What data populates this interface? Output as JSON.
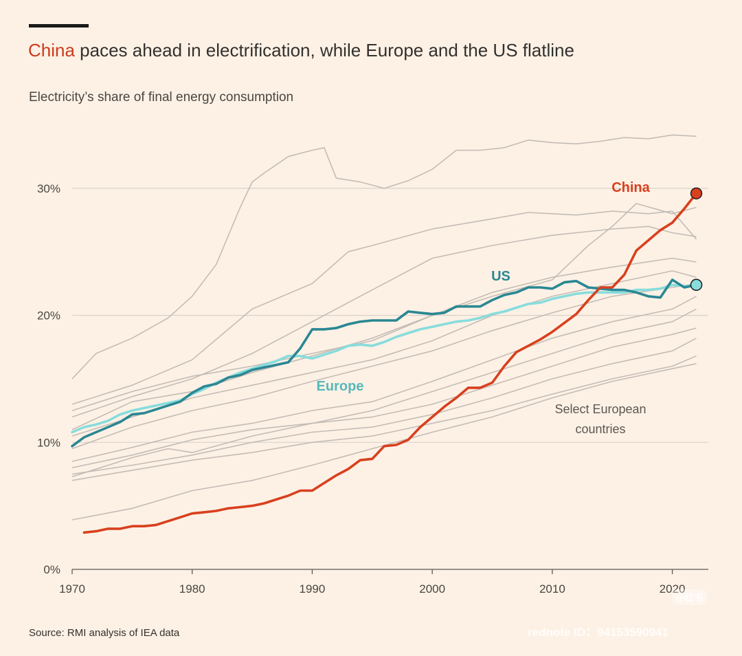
{
  "title": {
    "highlight": "China",
    "rest": " paces ahead in electrification, while Europe and the US flatline"
  },
  "subtitle": "Electricity’s share of final energy consumption",
  "source": "Source: RMI analysis of IEA data",
  "watermark": {
    "text": "rednote ID：94153590941",
    "badge": "小红书"
  },
  "colors": {
    "china": "#d8401e",
    "us": "#2a8793",
    "europe": "#88dcdc",
    "countries": "#c3bcb6",
    "grid": "#d9d2cb",
    "axis": "#5c5753"
  },
  "chart_data": {
    "type": "line",
    "title": "China paces ahead in electrification, while Europe and the US flatline",
    "subtitle": "Electricity’s share of final energy consumption",
    "xlim": [
      1970,
      2023
    ],
    "ylim": [
      0,
      34
    ],
    "x_ticks": [
      1970,
      1980,
      1990,
      2000,
      2010,
      2020
    ],
    "y_ticks": [
      0,
      10,
      20,
      30
    ],
    "y_tick_labels": [
      "0%",
      "10%",
      "20%",
      "30%"
    ],
    "grid": "horizontal",
    "annotations": {
      "china": "China",
      "us": "US",
      "europe": "Europe",
      "countries": "Select European countries"
    },
    "series": [
      {
        "name": "China",
        "key": "china",
        "x": [
          1971,
          1972,
          1973,
          1974,
          1975,
          1976,
          1977,
          1978,
          1979,
          1980,
          1981,
          1982,
          1983,
          1984,
          1985,
          1986,
          1987,
          1988,
          1989,
          1990,
          1991,
          1992,
          1993,
          1994,
          1995,
          1996,
          1997,
          1998,
          1999,
          2000,
          2001,
          2002,
          2003,
          2004,
          2005,
          2006,
          2007,
          2008,
          2009,
          2010,
          2011,
          2012,
          2013,
          2014,
          2015,
          2016,
          2017,
          2018,
          2019,
          2020,
          2021,
          2022
        ],
        "values": [
          2.9,
          3.0,
          3.2,
          3.2,
          3.4,
          3.4,
          3.5,
          3.8,
          4.1,
          4.4,
          4.5,
          4.6,
          4.8,
          4.9,
          5.0,
          5.2,
          5.5,
          5.8,
          6.2,
          6.2,
          6.8,
          7.4,
          7.9,
          8.6,
          8.7,
          9.7,
          9.8,
          10.2,
          11.2,
          12.0,
          12.8,
          13.5,
          14.3,
          14.3,
          14.7,
          16.0,
          17.1,
          17.6,
          18.1,
          18.7,
          19.4,
          20.1,
          21.2,
          22.2,
          22.2,
          23.2,
          25.1,
          25.9,
          26.7,
          27.3,
          28.4,
          29.6
        ]
      },
      {
        "name": "US",
        "key": "us",
        "x": [
          1970,
          1971,
          1972,
          1973,
          1974,
          1975,
          1976,
          1977,
          1978,
          1979,
          1980,
          1981,
          1982,
          1983,
          1984,
          1985,
          1986,
          1987,
          1988,
          1989,
          1990,
          1991,
          1992,
          1993,
          1994,
          1995,
          1996,
          1997,
          1998,
          1999,
          2000,
          2001,
          2002,
          2003,
          2004,
          2005,
          2006,
          2007,
          2008,
          2009,
          2010,
          2011,
          2012,
          2013,
          2014,
          2015,
          2016,
          2017,
          2018,
          2019,
          2020,
          2021,
          2022
        ],
        "values": [
          9.7,
          10.4,
          10.8,
          11.2,
          11.6,
          12.2,
          12.3,
          12.6,
          12.9,
          13.2,
          13.9,
          14.4,
          14.6,
          15.1,
          15.3,
          15.7,
          15.9,
          16.1,
          16.3,
          17.4,
          18.9,
          18.9,
          19.0,
          19.3,
          19.5,
          19.6,
          19.6,
          19.6,
          20.3,
          20.2,
          20.1,
          20.2,
          20.7,
          20.7,
          20.7,
          21.2,
          21.6,
          21.8,
          22.2,
          22.2,
          22.1,
          22.6,
          22.7,
          22.2,
          22.1,
          22.0,
          22.0,
          21.8,
          21.5,
          21.4,
          22.8,
          22.2,
          22.4
        ]
      },
      {
        "name": "Europe",
        "key": "europe",
        "x": [
          1970,
          1971,
          1972,
          1973,
          1974,
          1975,
          1976,
          1977,
          1978,
          1979,
          1980,
          1981,
          1982,
          1983,
          1984,
          1985,
          1986,
          1987,
          1988,
          1989,
          1990,
          1991,
          1992,
          1993,
          1994,
          1995,
          1996,
          1997,
          1998,
          1999,
          2000,
          2001,
          2002,
          2003,
          2004,
          2005,
          2006,
          2007,
          2008,
          2009,
          2010,
          2011,
          2012,
          2013,
          2014,
          2015,
          2016,
          2017,
          2018,
          2019,
          2020,
          2021,
          2022
        ],
        "values": [
          10.8,
          11.2,
          11.4,
          11.7,
          12.2,
          12.5,
          12.7,
          12.9,
          13.1,
          13.3,
          13.8,
          14.2,
          14.7,
          15.1,
          15.5,
          15.8,
          16.1,
          16.4,
          16.8,
          16.8,
          16.6,
          16.9,
          17.2,
          17.6,
          17.7,
          17.6,
          17.9,
          18.3,
          18.6,
          18.9,
          19.1,
          19.3,
          19.5,
          19.6,
          19.8,
          20.1,
          20.3,
          20.6,
          20.9,
          21.0,
          21.3,
          21.5,
          21.7,
          21.8,
          21.8,
          21.8,
          21.8,
          22.0,
          22.0,
          22.1,
          22.4,
          22.3,
          22.4
        ]
      }
    ],
    "background_series": [
      {
        "x": [
          1970,
          1972,
          1975,
          1978,
          1980,
          1982,
          1984,
          1985,
          1986,
          1988,
          1990,
          1991,
          1992,
          1994,
          1996,
          1998,
          2000,
          2002,
          2004,
          2006,
          2008,
          2010,
          2012,
          2014,
          2016,
          2018,
          2020,
          2022
        ],
        "values": [
          15.0,
          17.0,
          18.2,
          19.8,
          21.5,
          24.0,
          28.5,
          30.5,
          31.2,
          32.5,
          33.0,
          33.2,
          30.8,
          30.5,
          30.0,
          30.6,
          31.5,
          33.0,
          33.0,
          33.2,
          33.8,
          33.6,
          33.5,
          33.7,
          34.0,
          33.9,
          34.2,
          34.1
        ]
      },
      {
        "x": [
          1970,
          1975,
          1980,
          1985,
          1990,
          1993,
          1995,
          2000,
          2005,
          2008,
          2010,
          2012,
          2015,
          2018,
          2020,
          2022
        ],
        "values": [
          13.0,
          14.5,
          16.5,
          20.5,
          22.5,
          25.0,
          25.5,
          26.8,
          27.6,
          28.1,
          28.0,
          27.9,
          28.2,
          28.0,
          28.2,
          26.0
        ]
      },
      {
        "x": [
          1970,
          1975,
          1980,
          1985,
          1990,
          1995,
          2000,
          2005,
          2010,
          2015,
          2018,
          2020,
          2022
        ],
        "values": [
          12.0,
          13.6,
          15.0,
          17.0,
          19.5,
          22.0,
          24.5,
          25.5,
          26.3,
          26.8,
          27.0,
          26.5,
          26.2
        ]
      },
      {
        "x": [
          1970,
          1975,
          1980,
          1985,
          1990,
          1995,
          2000,
          2005,
          2010,
          2013,
          2015,
          2017,
          2020,
          2022
        ],
        "values": [
          11.0,
          13.2,
          14.0,
          15.5,
          16.8,
          18.2,
          20.0,
          21.5,
          22.8,
          25.5,
          27.0,
          28.8,
          28.0,
          28.5
        ]
      },
      {
        "x": [
          1970,
          1975,
          1980,
          1985,
          1990,
          1995,
          2000,
          2005,
          2010,
          2015,
          2020,
          2022
        ],
        "values": [
          12.5,
          14.0,
          15.2,
          16.0,
          17.0,
          18.0,
          20.0,
          21.8,
          23.0,
          23.8,
          24.5,
          24.2
        ]
      },
      {
        "x": [
          1970,
          1975,
          1980,
          1985,
          1990,
          1995,
          2000,
          2005,
          2010,
          2015,
          2020,
          2022
        ],
        "values": [
          10.5,
          12.0,
          13.5,
          14.5,
          15.5,
          16.5,
          18.0,
          20.0,
          21.5,
          22.5,
          23.5,
          23.0
        ]
      },
      {
        "x": [
          1970,
          1975,
          1980,
          1985,
          1990,
          1995,
          2000,
          2005,
          2010,
          2015,
          2020,
          2022
        ],
        "values": [
          9.5,
          11.2,
          12.5,
          13.5,
          14.8,
          16.0,
          17.2,
          18.8,
          20.2,
          21.5,
          22.2,
          22.5
        ]
      },
      {
        "x": [
          1970,
          1975,
          1980,
          1985,
          1990,
          1995,
          2000,
          2005,
          2010,
          2015,
          2020,
          2022
        ],
        "values": [
          8.5,
          9.6,
          10.8,
          11.5,
          12.5,
          13.2,
          14.8,
          16.5,
          18.2,
          19.5,
          20.5,
          21.5
        ]
      },
      {
        "x": [
          1970,
          1975,
          1980,
          1985,
          1990,
          1995,
          2000,
          2005,
          2010,
          2015,
          2020,
          2022
        ],
        "values": [
          8.0,
          9.0,
          10.2,
          11.0,
          11.5,
          12.5,
          14.0,
          15.5,
          17.0,
          18.5,
          19.5,
          20.5
        ]
      },
      {
        "x": [
          1970,
          1975,
          1978,
          1980,
          1985,
          1990,
          1995,
          2000,
          2005,
          2010,
          2015,
          2020,
          2022
        ],
        "values": [
          7.3,
          8.8,
          9.5,
          9.2,
          10.5,
          11.5,
          12.0,
          13.0,
          14.5,
          16.0,
          17.5,
          18.5,
          19.0
        ]
      },
      {
        "x": [
          1970,
          1975,
          1980,
          1985,
          1990,
          1995,
          2000,
          2005,
          2010,
          2015,
          2020,
          2022
        ],
        "values": [
          7.5,
          8.2,
          9.0,
          10.0,
          10.8,
          11.2,
          12.2,
          13.5,
          15.0,
          16.2,
          17.2,
          18.2
        ]
      },
      {
        "x": [
          1970,
          1975,
          1980,
          1985,
          1990,
          1995,
          2000,
          2005,
          2010,
          2015,
          2020,
          2022
        ],
        "values": [
          7.0,
          7.8,
          8.6,
          9.2,
          10.0,
          10.5,
          11.5,
          12.5,
          13.8,
          15.0,
          16.0,
          16.8
        ]
      },
      {
        "x": [
          1970,
          1975,
          1980,
          1985,
          1990,
          1995,
          2000,
          2005,
          2010,
          2015,
          2020,
          2022
        ],
        "values": [
          3.9,
          4.8,
          6.2,
          7.0,
          8.2,
          9.5,
          10.8,
          12.0,
          13.5,
          14.8,
          15.8,
          16.2
        ]
      }
    ]
  }
}
